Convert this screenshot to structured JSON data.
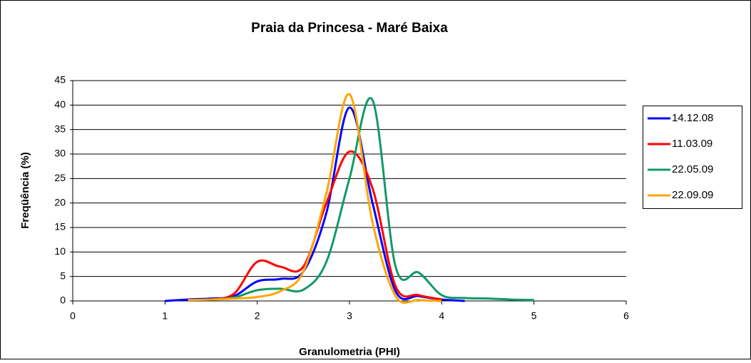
{
  "chart_data": {
    "type": "line",
    "title": "Praia da Princesa - Maré Baixa",
    "x_label": "Granulometria (PHI)",
    "y_label": "Freqüência (%)",
    "x": [
      1,
      1.25,
      1.5,
      1.75,
      2,
      2.25,
      2.5,
      2.75,
      3,
      3.25,
      3.5,
      3.75,
      4,
      4.25,
      4.5,
      4.75,
      5
    ],
    "series": [
      {
        "name": "14.12.08",
        "color": "#0000ff",
        "values": [
          0,
          0.3,
          0.5,
          1,
          4,
          4.5,
          6,
          18,
          39.5,
          20,
          2,
          1,
          0.3,
          0,
          null,
          null,
          null
        ]
      },
      {
        "name": "11.03.09",
        "color": "#ff0000",
        "values": [
          null,
          null,
          0.3,
          1.5,
          8,
          7,
          7,
          20,
          30.5,
          23,
          3,
          1.2,
          0.3,
          null,
          null,
          null,
          null
        ]
      },
      {
        "name": "22.05.09",
        "color": "#119966",
        "values": [
          null,
          null,
          0.3,
          0.7,
          2.2,
          2.5,
          2.3,
          8,
          25,
          41,
          7,
          5.8,
          1.2,
          0.6,
          0.5,
          0.3,
          0.2
        ]
      },
      {
        "name": "22.09.09",
        "color": "#ffa500",
        "values": [
          null,
          0.2,
          0.3,
          0.5,
          0.8,
          2,
          6,
          22,
          42.2,
          16,
          1,
          0.2,
          0,
          null,
          null,
          null,
          null
        ]
      }
    ],
    "xlim": [
      0,
      6
    ],
    "xticks": [
      0,
      1,
      2,
      3,
      4,
      5,
      6
    ],
    "ylim": [
      0,
      45
    ],
    "yticks": [
      0,
      5,
      10,
      15,
      20,
      25,
      30,
      35,
      40,
      45
    ],
    "grid": true,
    "legend": "right"
  }
}
